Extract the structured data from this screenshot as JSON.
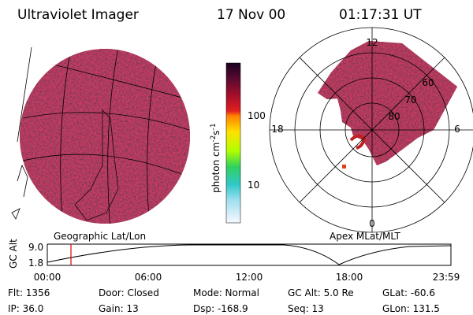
{
  "header": {
    "instrument": "Ultraviolet Imager",
    "date": "17 Nov 00",
    "time": "01:17:31 UT"
  },
  "colorbar": {
    "ticks": [
      "100",
      "10"
    ],
    "unit": {
      "base": "photon cm",
      "exp1": "-2",
      "mid": "s",
      "exp2": "-1"
    }
  },
  "left_panel": {
    "label": "Geographic Lat/Lon"
  },
  "right_panel": {
    "label": "Apex MLat/MLT",
    "mlt_labels": [
      "12",
      "18",
      "6",
      "0"
    ],
    "lat_labels": [
      "60",
      "70",
      "80"
    ]
  },
  "timeline": {
    "axis_label": "GC Alt",
    "y_labels": [
      "9.0",
      "1.8"
    ],
    "x_labels": [
      "00:00",
      "06:00",
      "12:00",
      "18:00",
      "23:59"
    ]
  },
  "footer": {
    "rows": [
      [
        "Flt: 1356",
        "Door: Closed",
        "Mode: Normal",
        "GC Alt: 5.0 Re",
        "GLat: -60.6"
      ],
      [
        "IP: 36.0",
        "Gain: 13",
        "Dsp: -168.9",
        "Seq: 13",
        "GLon: 131.5"
      ]
    ]
  }
}
